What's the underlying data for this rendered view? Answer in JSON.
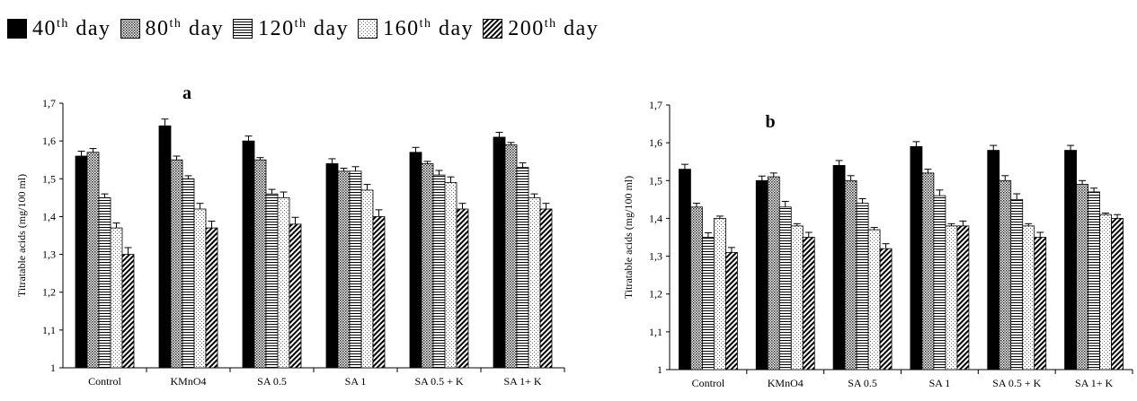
{
  "legend": [
    {
      "base": "40",
      "sup": "th",
      "tail": " day",
      "pattern": "solid"
    },
    {
      "base": "80",
      "sup": "th",
      "tail": " day",
      "pattern": "dots"
    },
    {
      "base": "120",
      "sup": "th",
      "tail": " day",
      "pattern": "hlines"
    },
    {
      "base": "160",
      "sup": "th",
      "tail": " day",
      "pattern": "sparse"
    },
    {
      "base": "200",
      "sup": "th",
      "tail": " day",
      "pattern": "diag"
    }
  ],
  "chart_data": [
    {
      "type": "bar",
      "title": "a",
      "xlabel": "",
      "ylabel": "Titratable acids (mg/100 ml)",
      "ylim": [
        1,
        1.7
      ],
      "yticks": [
        "1",
        "1,1",
        "1,2",
        "1,3",
        "1,4",
        "1,5",
        "1,6",
        "1,7"
      ],
      "categories": [
        "Control",
        "KMnO4",
        "SA 0.5",
        "SA 1",
        "SA 0.5 + K",
        "SA 1+ K"
      ],
      "series": [
        {
          "name": "40th day",
          "values": [
            1.56,
            1.64,
            1.6,
            1.54,
            1.57,
            1.61
          ],
          "errors": [
            0.013,
            0.018,
            0.013,
            0.013,
            0.013,
            0.013
          ]
        },
        {
          "name": "80th day",
          "values": [
            1.57,
            1.55,
            1.55,
            1.52,
            1.54,
            1.59
          ],
          "errors": [
            0.01,
            0.01,
            0.006,
            0.008,
            0.006,
            0.006
          ]
        },
        {
          "name": "120th day",
          "values": [
            1.45,
            1.5,
            1.46,
            1.52,
            1.51,
            1.53
          ],
          "errors": [
            0.01,
            0.008,
            0.012,
            0.012,
            0.012,
            0.012
          ]
        },
        {
          "name": "160th day",
          "values": [
            1.37,
            1.42,
            1.45,
            1.47,
            1.49,
            1.45
          ],
          "errors": [
            0.013,
            0.015,
            0.015,
            0.015,
            0.015,
            0.01
          ]
        },
        {
          "name": "200th day",
          "values": [
            1.3,
            1.37,
            1.38,
            1.4,
            1.42,
            1.42
          ],
          "errors": [
            0.018,
            0.018,
            0.018,
            0.018,
            0.015,
            0.015
          ]
        }
      ]
    },
    {
      "type": "bar",
      "title": "b",
      "xlabel": "",
      "ylabel": "Titratable acids (mg/100 ml)",
      "ylim": [
        1,
        1.7
      ],
      "yticks": [
        "1",
        "1,1",
        "1,2",
        "1,3",
        "1,4",
        "1,5",
        "1,6",
        "1,7"
      ],
      "categories": [
        "Control",
        "KMnO4",
        "SA 0.5",
        "SA 1",
        "SA 0.5 + K",
        "SA 1+ K"
      ],
      "series": [
        {
          "name": "40th day",
          "values": [
            1.53,
            1.5,
            1.54,
            1.59,
            1.58,
            1.58
          ],
          "errors": [
            0.013,
            0.012,
            0.013,
            0.013,
            0.013,
            0.013
          ]
        },
        {
          "name": "80th day",
          "values": [
            1.43,
            1.51,
            1.5,
            1.52,
            1.5,
            1.49
          ],
          "errors": [
            0.01,
            0.01,
            0.013,
            0.01,
            0.013,
            0.01
          ]
        },
        {
          "name": "120th day",
          "values": [
            1.35,
            1.43,
            1.44,
            1.46,
            1.45,
            1.47
          ],
          "errors": [
            0.012,
            0.015,
            0.012,
            0.015,
            0.015,
            0.01
          ]
        },
        {
          "name": "160th day",
          "values": [
            1.4,
            1.38,
            1.37,
            1.38,
            1.38,
            1.41
          ],
          "errors": [
            0.006,
            0.006,
            0.006,
            0.006,
            0.006,
            0.004
          ]
        },
        {
          "name": "200th day",
          "values": [
            1.31,
            1.35,
            1.32,
            1.38,
            1.35,
            1.4
          ],
          "errors": [
            0.013,
            0.013,
            0.013,
            0.013,
            0.013,
            0.01
          ]
        }
      ]
    }
  ]
}
